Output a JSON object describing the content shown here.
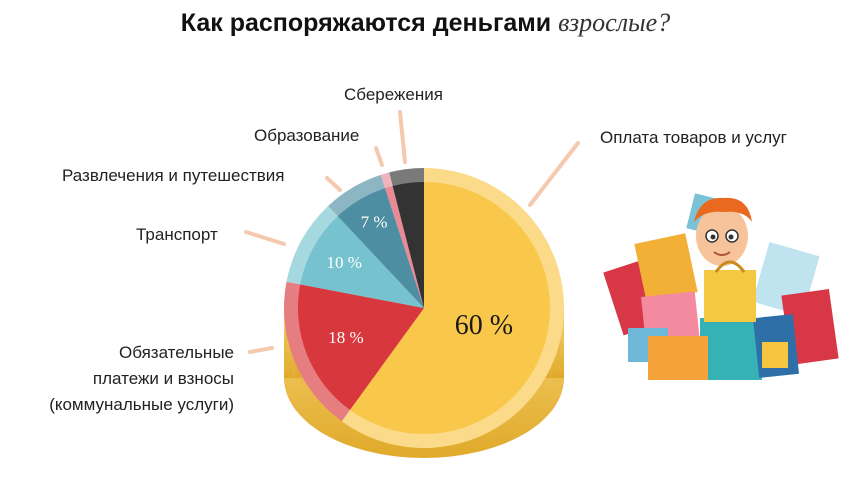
{
  "title": {
    "main": "Как распоряжаются деньгами",
    "emphasis": "взрослые?"
  },
  "chart_data": {
    "type": "pie",
    "title": "Как распоряжаются деньгами взрослые?",
    "slices": [
      {
        "label": "Оплата товаров и услуг",
        "value": 60,
        "value_label": "60 %",
        "color": "#F9C84B"
      },
      {
        "label": "Обязательные платежи и взносы (коммунальные услуги)",
        "lines": [
          "Обязательные",
          "платежи и взносы",
          "(коммунальные услуги)"
        ],
        "value": 18,
        "value_label": "18 %",
        "color": "#D8383D"
      },
      {
        "label": "Транспорт",
        "value": 10,
        "value_label": "10 %",
        "color": "#76C3CF"
      },
      {
        "label": "Развлечения и путешествия",
        "value": 7,
        "value_label": "7 %",
        "color": "#4E8EA3"
      },
      {
        "label": "Образование",
        "value": 1,
        "value_label": "",
        "color": "#E98A97"
      },
      {
        "label": "Сбережения",
        "value": 4,
        "value_label": "",
        "color": "#333333"
      }
    ]
  }
}
